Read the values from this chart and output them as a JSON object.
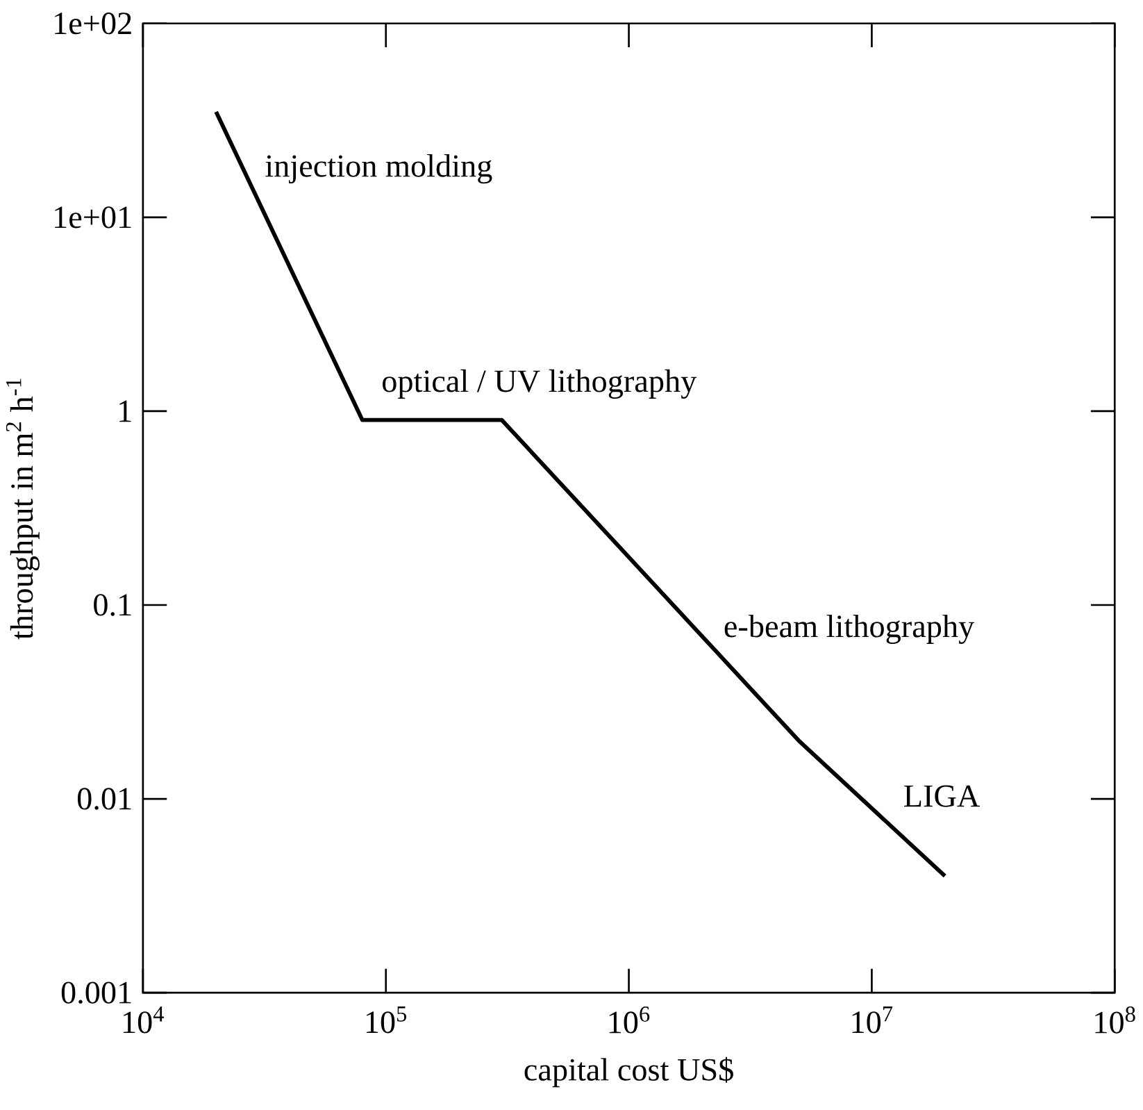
{
  "chart_data": {
    "type": "line",
    "xlabel": "capital cost US$",
    "ylabel": "throughput in m$^{2}$ h$^{-1}$",
    "x": [
      20000,
      80000,
      300000,
      5000000,
      20000000
    ],
    "values": [
      35,
      0.9,
      0.9,
      0.02,
      0.004
    ],
    "color": "#000000",
    "marker": "none",
    "line_style": "solid",
    "log": "xy",
    "xlim": [
      10000,
      100000000
    ],
    "ylim": [
      0.001,
      100
    ],
    "xticks": [
      {
        "value": 10000,
        "label": "10$^{4}$"
      },
      {
        "value": 100000,
        "label": "10$^{5}$"
      },
      {
        "value": 1000000,
        "label": "10$^{6}$"
      },
      {
        "value": 10000000,
        "label": "10$^{7}$"
      },
      {
        "value": 100000000,
        "label": "10$^{8}$"
      }
    ],
    "yticks": [
      {
        "value": 100,
        "label": "1e+02"
      },
      {
        "value": 10,
        "label": "1e+01"
      },
      1,
      0.1,
      0.01,
      0.001
    ],
    "annotations": [
      "injection molding",
      "optical / UV lithography",
      "e-beam lithography",
      "LIGA"
    ]
  }
}
